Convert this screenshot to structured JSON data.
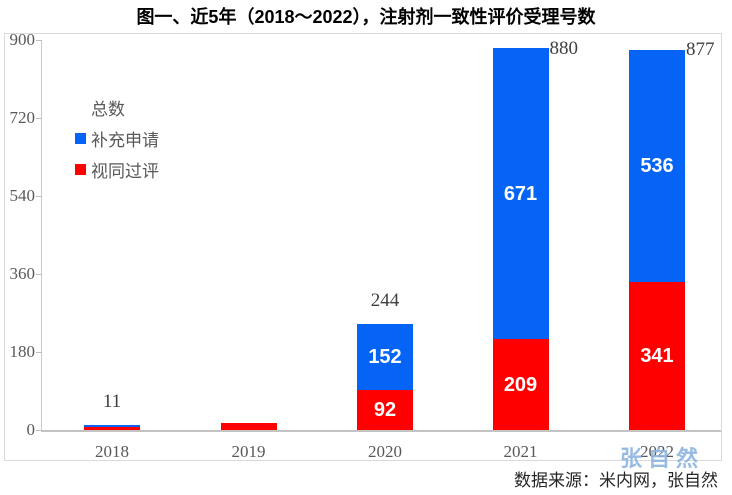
{
  "title": "图一、近5年（2018～2022），注射剂一致性评价受理号数",
  "legend": {
    "items": [
      {
        "label": "总数",
        "color": "none"
      },
      {
        "label": "补充申请",
        "color": "#0564F6"
      },
      {
        "label": "视同过评",
        "color": "#FF0000"
      }
    ]
  },
  "source": "数据来源：米内网，张自然",
  "watermark": "张自然",
  "colors": {
    "blue": "#0564F6",
    "red": "#FF0000",
    "axis_text": "#595959",
    "total_text": "#404040",
    "chart_border": "#D9D9D9",
    "watermark": "#8DB4E2",
    "title_text": "#000000"
  },
  "chart_data": {
    "type": "bar",
    "stacked": true,
    "title": "图一、近5年（2018～2022），注射剂一致性评价受理号数",
    "categories": [
      "2018",
      "2019",
      "2020",
      "2021",
      "2022"
    ],
    "series": [
      {
        "name": "视同过评",
        "color": "#FF0000",
        "values": [
          6,
          15,
          92,
          209,
          341
        ],
        "labels": [
          "",
          "",
          "92",
          "209",
          "341"
        ]
      },
      {
        "name": "补充申请",
        "color": "#0564F6",
        "values": [
          5,
          0,
          152,
          671,
          536
        ],
        "labels": [
          "",
          "",
          "152",
          "671",
          "536"
        ]
      }
    ],
    "totals": {
      "name": "总数",
      "values": [
        11,
        15,
        244,
        880,
        877
      ],
      "labels": [
        "11",
        "",
        "244",
        "880",
        "877"
      ],
      "label_side": [
        "above",
        "none",
        "above",
        "right",
        "right"
      ]
    },
    "ylim": [
      0,
      900
    ],
    "yticks": [
      0,
      180,
      360,
      540,
      720,
      900
    ],
    "xlabel": "",
    "ylabel": "",
    "grid": false,
    "legend_position": "top-left-inside"
  }
}
